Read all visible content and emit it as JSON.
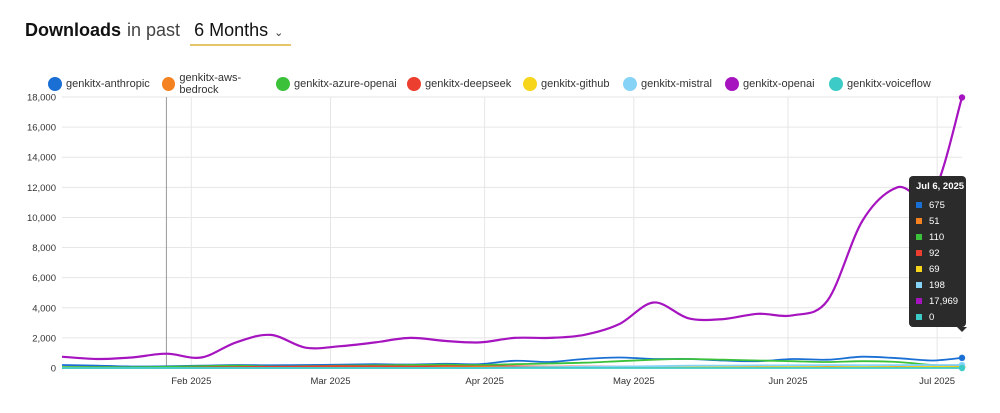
{
  "header": {
    "title": "Downloads",
    "in_past": "in past",
    "period": "6 Months"
  },
  "chart_data": {
    "type": "line",
    "x": [
      "2025-01-06",
      "2025-01-13",
      "2025-01-20",
      "2025-01-27",
      "2025-02-03",
      "2025-02-10",
      "2025-02-17",
      "2025-02-24",
      "2025-03-03",
      "2025-03-10",
      "2025-03-17",
      "2025-03-24",
      "2025-03-31",
      "2025-04-07",
      "2025-04-14",
      "2025-04-21",
      "2025-04-28",
      "2025-05-05",
      "2025-05-12",
      "2025-05-19",
      "2025-05-26",
      "2025-06-02",
      "2025-06-09",
      "2025-06-16",
      "2025-06-23",
      "2025-06-30",
      "2025-07-06"
    ],
    "x_ticks": [
      "Feb 2025",
      "Mar 2025",
      "Apr 2025",
      "May 2025",
      "Jun 2025",
      "Jul 2025"
    ],
    "y_ticks": [
      "0",
      "2,000",
      "4,000",
      "6,000",
      "8,000",
      "10,000",
      "12,000",
      "14,000",
      "16,000",
      "18,000"
    ],
    "ylim": [
      0,
      18000
    ],
    "grid": true,
    "legend_position": "top-left",
    "series": [
      {
        "name": "genkitx-anthropic",
        "color": "#1a6fd4",
        "values": [
          200,
          150,
          100,
          110,
          150,
          200,
          180,
          200,
          220,
          250,
          230,
          280,
          260,
          480,
          400,
          600,
          700,
          600,
          600,
          500,
          450,
          600,
          550,
          750,
          650,
          500,
          675
        ]
      },
      {
        "name": "genkitx-aws-bedrock",
        "color": "#f58220",
        "values": [
          50,
          50,
          40,
          40,
          60,
          60,
          50,
          40,
          40,
          50,
          40,
          50,
          40,
          50,
          40,
          50,
          50,
          50,
          60,
          50,
          40,
          50,
          40,
          50,
          40,
          50,
          51
        ]
      },
      {
        "name": "genkitx-azure-openai",
        "color": "#3cc13b",
        "values": [
          50,
          60,
          50,
          80,
          120,
          150,
          100,
          120,
          150,
          180,
          200,
          220,
          200,
          250,
          300,
          350,
          450,
          550,
          600,
          550,
          500,
          450,
          400,
          450,
          400,
          200,
          110
        ]
      },
      {
        "name": "genkitx-deepseek",
        "color": "#ed3f2f",
        "values": [
          0,
          0,
          0,
          0,
          30,
          60,
          80,
          100,
          120,
          110,
          100,
          120,
          100,
          110,
          90,
          100,
          90,
          100,
          80,
          90,
          80,
          90,
          80,
          100,
          90,
          90,
          92
        ]
      },
      {
        "name": "genkitx-github",
        "color": "#f7d51c",
        "values": [
          0,
          0,
          0,
          0,
          0,
          0,
          0,
          0,
          0,
          0,
          0,
          20,
          30,
          40,
          50,
          60,
          60,
          50,
          60,
          50,
          60,
          70,
          60,
          70,
          60,
          70,
          69
        ]
      },
      {
        "name": "genkitx-mistral",
        "color": "#85d3f7",
        "values": [
          0,
          0,
          0,
          0,
          0,
          0,
          0,
          0,
          0,
          0,
          0,
          0,
          0,
          40,
          60,
          80,
          100,
          120,
          150,
          160,
          170,
          180,
          190,
          180,
          190,
          200,
          198
        ]
      },
      {
        "name": "genkitx-openai",
        "color": "#a614c0",
        "values": [
          750,
          600,
          700,
          950,
          700,
          1700,
          2200,
          1350,
          1450,
          1700,
          2000,
          1800,
          1700,
          2000,
          2000,
          2200,
          2900,
          4350,
          3300,
          3250,
          3600,
          3500,
          4500,
          9800,
          12000,
          11500,
          17969
        ]
      },
      {
        "name": "genkitx-voiceflow",
        "color": "#3ccbc6",
        "values": [
          0,
          0,
          0,
          0,
          0,
          0,
          0,
          0,
          0,
          0,
          0,
          0,
          0,
          0,
          0,
          0,
          0,
          0,
          0,
          0,
          0,
          0,
          0,
          0,
          0,
          0,
          0
        ]
      }
    ]
  },
  "tooltip": {
    "date": "Jul 6, 2025",
    "rows": [
      {
        "value": "675",
        "color": "#1a6fd4"
      },
      {
        "value": "51",
        "color": "#f58220"
      },
      {
        "value": "110",
        "color": "#3cc13b"
      },
      {
        "value": "92",
        "color": "#ed3f2f"
      },
      {
        "value": "69",
        "color": "#f7d51c"
      },
      {
        "value": "198",
        "color": "#85d3f7"
      },
      {
        "value": "17,969",
        "color": "#a614c0"
      },
      {
        "value": "0",
        "color": "#3ccbc6"
      }
    ]
  }
}
